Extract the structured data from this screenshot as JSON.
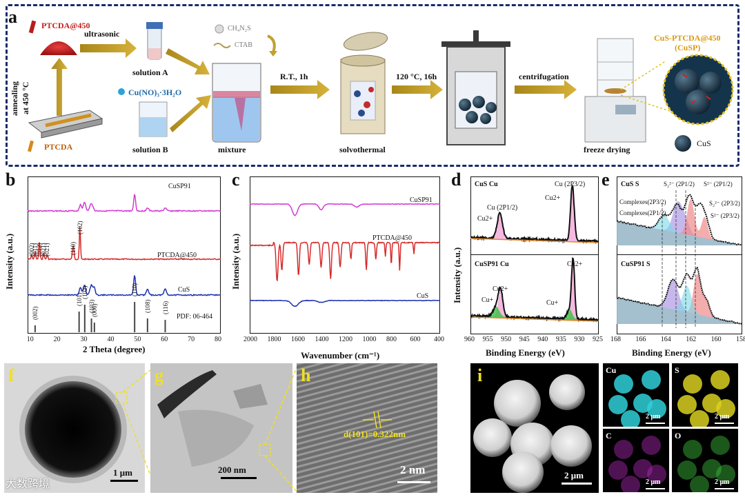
{
  "panel_a": {
    "letter": "a",
    "labels": {
      "ptcda450": "PTCDA@450",
      "ultrasonic": "ultrasonic",
      "annealing": "annealing",
      "at450": "at 450 °C",
      "ptcda": "PTCDA",
      "solution_a": "solution A",
      "cu_salt": "Cu(NO)₃·3H₂O",
      "solution_b": "solution B",
      "ch4n2s": "CH₄N₂S",
      "ctab": "CTAB",
      "mixture": "mixture",
      "rt": "R.T., 1h",
      "solvothermal": "solvothermal",
      "temp": "120 °C, 16h",
      "centrifugation": "centrifugation",
      "freeze_drying": "freeze drying",
      "product": "CuS-PTCDA@450",
      "product_abbr": "(CuSP)",
      "cus": "CuS"
    }
  },
  "panel_b": {
    "letter": "b",
    "chart_data": {
      "type": "line",
      "xlabel": "2 Theta (degree)",
      "ylabel": "Intensity (a.u.)",
      "xlim": [
        8,
        80
      ],
      "xticks": [
        10,
        20,
        30,
        40,
        50,
        60,
        70,
        80
      ],
      "series": [
        {
          "name": "CuSP91",
          "color": "#d23ad2"
        },
        {
          "name": "PTCDA@450",
          "color": "#d62a2a"
        },
        {
          "name": "CuS",
          "color": "#1a2fb0"
        }
      ],
      "ptcda_peaks": [
        {
          "label": "(002)",
          "x": 9.5
        },
        {
          "label": "(011)",
          "x": 10.8
        },
        {
          "label": "(012)",
          "x": 12.4
        },
        {
          "label": "(021)",
          "x": 14.0
        },
        {
          "label": "(021)",
          "x": 15.3
        },
        {
          "label": "(110)",
          "x": 25.0
        },
        {
          "label": "(102)",
          "x": 27.5
        }
      ],
      "pdf_peaks": [
        {
          "label": "(002)",
          "x": 10.8
        },
        {
          "label": "(101)",
          "x": 27.2
        },
        {
          "label": "(102)",
          "x": 29.3
        },
        {
          "label": "(103)",
          "x": 31.8
        },
        {
          "label": "(006)",
          "x": 32.9
        },
        {
          "label": "(110)",
          "x": 47.9
        },
        {
          "label": "(108)",
          "x": 52.7
        },
        {
          "label": "(116)",
          "x": 59.3
        }
      ],
      "pdf_label": "PDF: 06-464"
    }
  },
  "panel_c": {
    "letter": "c",
    "chart_data": {
      "type": "line",
      "xlabel": "Wavenumber (cm⁻¹)",
      "ylabel": "Intensity (a.u.)",
      "xlim": [
        2000,
        400
      ],
      "xticks": [
        2000,
        1800,
        1600,
        1400,
        1200,
        1000,
        800,
        600,
        400
      ],
      "series": [
        {
          "name": "CuSP91",
          "color": "#d23ad2"
        },
        {
          "name": "PTCDA@450",
          "color": "#d62a2a"
        },
        {
          "name": "CuS",
          "color": "#1a2fb0"
        }
      ]
    }
  },
  "panel_d": {
    "letter": "d",
    "chart_data": {
      "type": "line",
      "xlabel": "Binding Energy (eV)",
      "ylabel": "Intensity (a.u.)",
      "xlim": [
        960,
        925
      ],
      "xticks": [
        960,
        955,
        950,
        945,
        940,
        935,
        930,
        925
      ],
      "top_title": "CuS Cu",
      "bottom_title": "CuSP91 Cu",
      "top_labels": [
        "Cu (2P1/2)",
        "Cu2+",
        "Cu (2P3/2)",
        "Cu2+"
      ],
      "bottom_labels": [
        "Cu+",
        "Cu2+",
        "Cu+",
        "Cu2+"
      ]
    }
  },
  "panel_e": {
    "letter": "e",
    "chart_data": {
      "type": "line",
      "xlabel": "Binding Energy (eV)",
      "ylabel": "",
      "xlim": [
        168,
        158
      ],
      "xticks": [
        168,
        166,
        164,
        162,
        160,
        158
      ],
      "top_title": "CuS S",
      "bottom_title": "CuSP91 S",
      "top_labels": [
        "S₂²⁻ (2P1/2)",
        "S²⁻ (2P1/2)",
        "Complexes(2P3/2)",
        "Complexes(2P1/2)",
        "S₂²⁻ (2P3/2)",
        "S²⁻ (2P3/2)"
      ]
    }
  },
  "panel_f": {
    "letter": "f",
    "scale": "1 μm"
  },
  "panel_g": {
    "letter": "g",
    "scale": "200 nm"
  },
  "panel_h": {
    "letter": "h",
    "scale": "2 nm",
    "d_spacing": "d(101)=0.322nm"
  },
  "panel_i": {
    "letter": "i",
    "scale": "2 μm",
    "maps": [
      {
        "element": "Cu",
        "scale": "2 μm",
        "color": "#2fd0d8"
      },
      {
        "element": "S",
        "scale": "2 μm",
        "color": "#d8d020"
      },
      {
        "element": "C",
        "scale": "2 μm",
        "color": "#b02ab8"
      },
      {
        "element": "O",
        "scale": "2 μm",
        "color": "#3fc03f"
      }
    ]
  },
  "watermark": "大数跨境"
}
